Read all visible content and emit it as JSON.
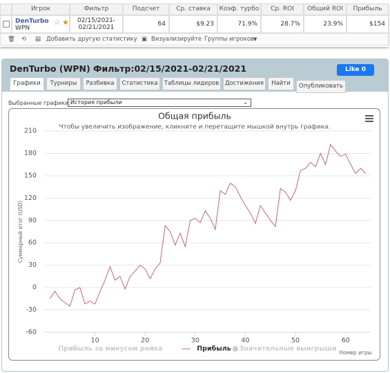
{
  "table": {
    "headers": [
      "Игрок",
      "Фильтр",
      "Подсчет",
      "Ср. ставка",
      "Коэф. турбо",
      "Ср. ROI",
      "Общий ROI",
      "Прибыль"
    ],
    "row": {
      "player": "DenTurbo",
      "site": "WPN",
      "filter": "02/15/2021-02/21/2021",
      "count": "64",
      "avg_stake": "$9.23",
      "turbo": "71.9%",
      "avg_roi": "28.7%",
      "total_roi": "23.9%",
      "profit": "$154"
    }
  },
  "toolbar": {
    "add_stat": "Добавить другую статистику",
    "visualize": "Визуализируйте",
    "groups": "Группы игроков"
  },
  "panel": {
    "title": "DenTurbo (WPN) Фильтр:02/15/2021-02/21/2021",
    "like": "Like 0",
    "tabs": [
      "Графики",
      "Турниры",
      "Разбивка",
      "Статистика",
      "Таблицы лидеров",
      "Достижения",
      "Найти",
      "Опубликовать"
    ],
    "select_label": "Выбранные графики:",
    "select_value": "История прибыли"
  },
  "chart_data": {
    "type": "line",
    "title": "Общая прибыль",
    "subtitle": "Чтобы увеличить изображение, кликните и перетащите мышкой внутрь графика.",
    "y_label": "Суммарный итог (USD)",
    "x_label": "Номер игры",
    "x": [
      1,
      2,
      3,
      4,
      5,
      6,
      7,
      8,
      9,
      10,
      11,
      12,
      13,
      14,
      15,
      16,
      17,
      18,
      19,
      20,
      21,
      22,
      23,
      24,
      25,
      26,
      27,
      28,
      29,
      30,
      31,
      32,
      33,
      34,
      35,
      36,
      37,
      38,
      39,
      40,
      41,
      42,
      43,
      44,
      45,
      46,
      47,
      48,
      49,
      50,
      51,
      52,
      53,
      54,
      55,
      56,
      57,
      58,
      59,
      60,
      61,
      62,
      63,
      64
    ],
    "series": [
      {
        "name": "Прибыль",
        "color": "#c0676f",
        "values": [
          -15,
          -5,
          -15,
          -20,
          -25,
          -3,
          0,
          -22,
          -18,
          -22,
          -5,
          10,
          28,
          10,
          15,
          -2,
          15,
          22,
          30,
          25,
          12,
          25,
          33,
          83,
          75,
          57,
          73,
          55,
          90,
          93,
          87,
          103,
          93,
          78,
          130,
          125,
          140,
          135,
          122,
          110,
          100,
          86,
          110,
          100,
          90,
          82,
          133,
          128,
          117,
          130,
          157,
          160,
          168,
          162,
          180,
          165,
          192,
          183,
          176,
          179,
          165,
          153,
          160,
          153
        ]
      }
    ],
    "inactive_legend": [
      "Прибыль за минусом рейка",
      "Значительные выигрыши"
    ],
    "xlim": [
      0,
      65
    ],
    "ylim": [
      -60,
      210
    ],
    "xticks": [
      10,
      20,
      30,
      40,
      50,
      60
    ],
    "yticks": [
      -60,
      -30,
      0,
      30,
      60,
      90,
      120,
      150,
      180,
      210
    ],
    "grid": true
  }
}
